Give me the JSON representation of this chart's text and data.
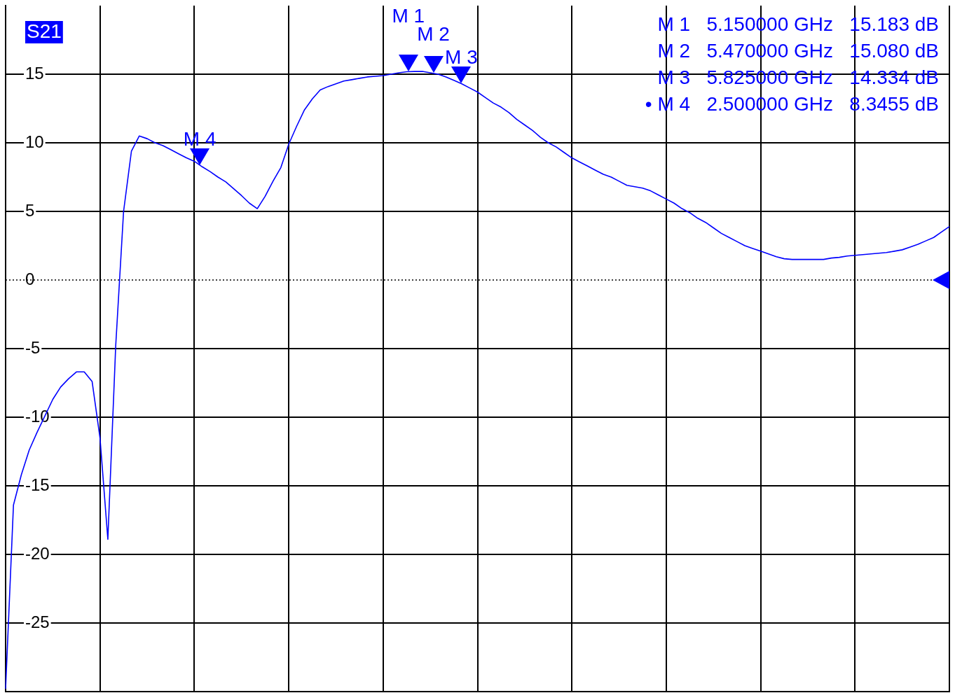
{
  "chart_data": {
    "type": "line",
    "title": "S21",
    "categories": [
      null,
      null,
      null,
      null,
      null,
      null,
      null,
      null,
      null,
      null,
      null,
      null,
      null,
      null,
      null,
      null,
      null,
      null,
      null,
      null,
      null,
      null,
      null,
      null,
      null,
      null,
      null,
      null,
      null,
      null,
      null,
      null,
      null,
      null,
      null,
      null,
      null,
      null,
      null,
      null,
      null,
      null,
      null,
      null,
      null,
      null,
      null,
      null,
      null,
      null,
      null,
      null,
      null,
      null,
      null,
      null,
      null,
      null,
      null,
      null,
      null,
      null,
      null,
      null,
      null,
      null,
      null,
      null,
      null,
      null,
      null,
      null,
      null,
      null,
      null,
      null,
      null,
      null,
      null,
      null,
      null,
      null,
      null,
      null,
      null,
      null,
      null,
      null,
      null,
      null,
      null,
      null,
      null,
      null,
      null,
      null,
      null,
      null,
      null,
      null,
      null,
      null,
      null,
      null,
      null,
      null,
      null,
      null,
      null,
      null,
      null,
      null,
      null,
      null,
      null,
      null,
      null,
      null,
      null,
      null,
      null
    ],
    "series": [
      {
        "color": "#0000ff",
        "values": [
          -29.8,
          -16.4,
          -14.2,
          -12.4,
          -11.1,
          -9.9,
          -8.7,
          -7.8,
          -7.2,
          -6.7,
          -6.7,
          -7.4,
          -11.5,
          -18.9,
          -4.8,
          5.0,
          9.4,
          10.5,
          10.3,
          10.0,
          9.8,
          9.5,
          9.2,
          8.9,
          8.65,
          8.25,
          7.9,
          7.5,
          7.15,
          6.65,
          6.15,
          5.6,
          5.2,
          6.1,
          7.2,
          8.2,
          9.9,
          11.2,
          12.4,
          13.2,
          13.85,
          14.1,
          14.3,
          14.5,
          14.6,
          14.7,
          14.8,
          14.85,
          14.9,
          15.0,
          15.1,
          15.18,
          15.2,
          15.2,
          15.1,
          15.0,
          14.8,
          14.55,
          14.3,
          14.0,
          13.7,
          13.3,
          12.9,
          12.6,
          12.2,
          11.7,
          11.3,
          10.9,
          10.4,
          10.0,
          9.7,
          9.3,
          8.9,
          8.6,
          8.3,
          8.0,
          7.7,
          7.5,
          7.2,
          6.9,
          6.8,
          6.7,
          6.5,
          6.2,
          5.9,
          5.6,
          5.2,
          4.9,
          4.5,
          4.2,
          3.8,
          3.4,
          3.1,
          2.8,
          2.5,
          2.3,
          2.1,
          1.9,
          1.7,
          1.55,
          1.5,
          1.5,
          1.5,
          1.5,
          1.5,
          1.6,
          1.65,
          1.75,
          1.8,
          1.85,
          1.9,
          1.95,
          2.0,
          2.1,
          2.2,
          2.4,
          2.6,
          2.85,
          3.1,
          3.5,
          3.9
        ]
      }
    ],
    "ylim": [
      -30,
      20
    ],
    "yticks": [
      -25,
      -20,
      -15,
      -10,
      -5,
      0,
      5,
      10,
      15
    ],
    "tick_labels": "y",
    "grid": true,
    "marker": "none",
    "line_style": "solid",
    "ref_lines": [
      {
        "axis": "y",
        "value": 0,
        "label": null,
        "color": "#000000",
        "line_style": "dotted"
      }
    ],
    "annotations": [
      {
        "text": "M 1",
        "y": 15.183
      },
      {
        "text": "M 2",
        "y": 15.08
      },
      {
        "text": "M 3",
        "y": 14.334
      },
      {
        "text": "M 4",
        "y": 8.3455
      },
      "M 1   5.150000 GHz   15.183 dB",
      "M 2   5.470000 GHz   15.080 dB",
      "M 3   5.825000 GHz   14.334 dB",
      "• M 4   2.500000 GHz   8.3455 dB"
    ]
  }
}
